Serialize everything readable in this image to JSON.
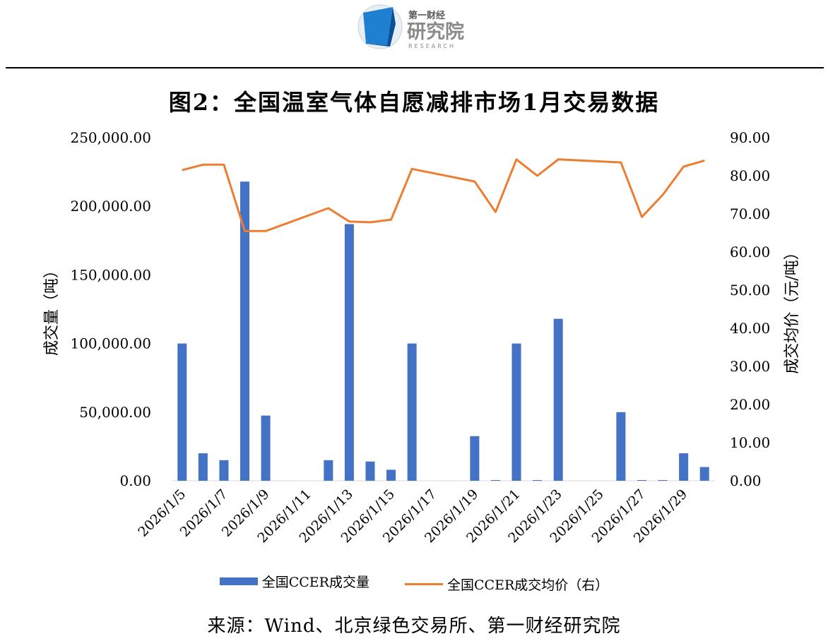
{
  "header": {
    "logo_cn_top": "第一财经",
    "logo_cn_main": "研究院",
    "logo_en": "RESEARCH"
  },
  "chart_data": {
    "type": "bar+line",
    "title": "图2：全国温室气体自愿减排市场1月交易数据",
    "categories": [
      "2026/1/5",
      "2026/1/6",
      "2026/1/7",
      "2026/1/8",
      "2026/1/9",
      "2026/1/10",
      "2026/1/11",
      "2026/1/12",
      "2026/1/13",
      "2026/1/14",
      "2026/1/15",
      "2026/1/16",
      "2026/1/17",
      "2026/1/18",
      "2026/1/19",
      "2026/1/20",
      "2026/1/21",
      "2026/1/22",
      "2026/1/23",
      "2026/1/24",
      "2026/1/25",
      "2026/1/26",
      "2026/1/27",
      "2026/1/28",
      "2026/1/29",
      "2026/1/30"
    ],
    "x_tick_labels": [
      "2026/1/5",
      "2026/1/7",
      "2026/1/9",
      "2026/1/11",
      "2026/1/13",
      "2026/1/15",
      "2026/1/17",
      "2026/1/19",
      "2026/1/21",
      "2026/1/23",
      "2026/1/25",
      "2026/1/27",
      "2026/1/29"
    ],
    "series": [
      {
        "name": "全国CCER成交量",
        "type": "bar",
        "axis": "left",
        "color": "#4472c4",
        "values": [
          100000,
          20000,
          15000,
          218000,
          47500,
          0,
          0,
          15000,
          187000,
          14000,
          8000,
          100000,
          0,
          0,
          32500,
          500,
          100000,
          500,
          118000,
          0,
          0,
          50000,
          500,
          500,
          20000,
          10000
        ]
      },
      {
        "name": "全国CCER成交均价（右）",
        "type": "line",
        "axis": "right",
        "color": "#ed7d31",
        "values": [
          81.5,
          82.9,
          82.9,
          65.5,
          65.5,
          null,
          null,
          71.5,
          68.0,
          67.8,
          68.5,
          81.8,
          null,
          null,
          78.5,
          70.5,
          84.3,
          80.0,
          84.3,
          null,
          null,
          83.5,
          69.2,
          75.0,
          82.4,
          84.0
        ]
      }
    ],
    "y_left": {
      "label": "成交量（吨）",
      "ticks": [
        "0.00",
        "50,000.00",
        "100,000.00",
        "150,000.00",
        "200,000.00",
        "250,000.00"
      ],
      "range": [
        0,
        250000
      ]
    },
    "y_right": {
      "label": "成交均价（元/吨）",
      "ticks": [
        "0.00",
        "10.00",
        "20.00",
        "30.00",
        "40.00",
        "50.00",
        "60.00",
        "70.00",
        "80.00",
        "90.00"
      ],
      "range": [
        0,
        90
      ]
    },
    "legend_position": "bottom",
    "grid": false
  },
  "source_text": "来源：Wind、北京绿色交易所、第一财经研究院"
}
